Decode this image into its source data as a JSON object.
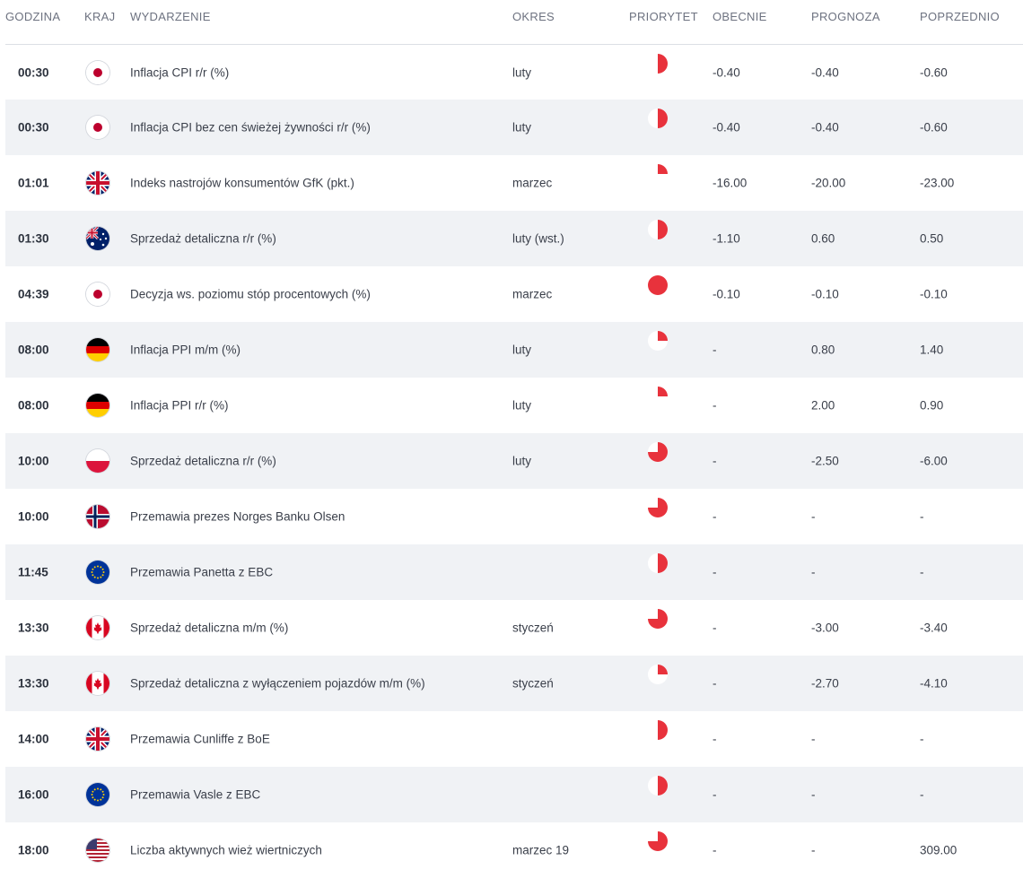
{
  "headers": {
    "time": "GODZINA",
    "country": "KRAJ",
    "event": "WYDARZENIE",
    "period": "OKRES",
    "priority": "PRIORYTET",
    "current": "OBECNIE",
    "forecast": "PROGNOZA",
    "previous": "POPRZEDNIO"
  },
  "colors": {
    "priority": "#e8323c",
    "alt_row": "#f0f2f5"
  },
  "rows": [
    {
      "time": "00:30",
      "flag": "jp-flag-icon",
      "event": "Inflacja CPI r/r (%)",
      "period": "luty",
      "priority": 0.5,
      "current": "-0.40",
      "forecast": "-0.40",
      "previous": "-0.60"
    },
    {
      "time": "00:30",
      "flag": "jp-flag-icon",
      "event": "Inflacja CPI bez cen świeżej żywności r/r (%)",
      "period": "luty",
      "priority": 0.5,
      "current": "-0.40",
      "forecast": "-0.40",
      "previous": "-0.60"
    },
    {
      "time": "01:01",
      "flag": "gb-flag-icon",
      "event": "Indeks nastrojów konsumentów GfK (pkt.)",
      "period": "marzec",
      "priority": 0.25,
      "current": "-16.00",
      "forecast": "-20.00",
      "previous": "-23.00"
    },
    {
      "time": "01:30",
      "flag": "au-flag-icon",
      "event": "Sprzedaż detaliczna r/r (%)",
      "period": "luty (wst.)",
      "priority": 0.5,
      "current": "-1.10",
      "forecast": "0.60",
      "previous": "0.50"
    },
    {
      "time": "04:39",
      "flag": "jp-flag-icon",
      "event": "Decyzja ws. poziomu stóp procentowych (%)",
      "period": "marzec",
      "priority": 1.0,
      "current": "-0.10",
      "forecast": "-0.10",
      "previous": "-0.10"
    },
    {
      "time": "08:00",
      "flag": "de-flag-icon",
      "event": "Inflacja PPI m/m (%)",
      "period": "luty",
      "priority": 0.25,
      "current": "-",
      "forecast": "0.80",
      "previous": "1.40"
    },
    {
      "time": "08:00",
      "flag": "de-flag-icon",
      "event": "Inflacja PPI r/r (%)",
      "period": "luty",
      "priority": 0.25,
      "current": "-",
      "forecast": "2.00",
      "previous": "0.90"
    },
    {
      "time": "10:00",
      "flag": "pl-flag-icon",
      "event": "Sprzedaż detaliczna r/r (%)",
      "period": "luty",
      "priority": 0.75,
      "current": "-",
      "forecast": "-2.50",
      "previous": "-6.00"
    },
    {
      "time": "10:00",
      "flag": "no-flag-icon",
      "event": "Przemawia prezes Norges Banku Olsen",
      "period": "",
      "priority": 0.75,
      "current": "-",
      "forecast": "-",
      "previous": "-"
    },
    {
      "time": "11:45",
      "flag": "eu-flag-icon",
      "event": "Przemawia Panetta z EBC",
      "period": "",
      "priority": 0.5,
      "current": "-",
      "forecast": "-",
      "previous": "-"
    },
    {
      "time": "13:30",
      "flag": "ca-flag-icon",
      "event": "Sprzedaż detaliczna m/m (%)",
      "period": "styczeń",
      "priority": 0.75,
      "current": "-",
      "forecast": "-3.00",
      "previous": "-3.40"
    },
    {
      "time": "13:30",
      "flag": "ca-flag-icon",
      "event": "Sprzedaż detaliczna z wyłączeniem pojazdów m/m (%)",
      "period": "styczeń",
      "priority": 0.25,
      "current": "-",
      "forecast": "-2.70",
      "previous": "-4.10"
    },
    {
      "time": "14:00",
      "flag": "gb-flag-icon",
      "event": "Przemawia Cunliffe z BoE",
      "period": "",
      "priority": 0.5,
      "current": "-",
      "forecast": "-",
      "previous": "-"
    },
    {
      "time": "16:00",
      "flag": "eu-flag-icon",
      "event": "Przemawia Vasle z EBC",
      "period": "",
      "priority": 0.5,
      "current": "-",
      "forecast": "-",
      "previous": "-"
    },
    {
      "time": "18:00",
      "flag": "us-flag-icon",
      "event": "Liczba aktywnych wież wiertniczych",
      "period": "marzec 19",
      "priority": 0.75,
      "current": "-",
      "forecast": "-",
      "previous": "309.00"
    }
  ]
}
